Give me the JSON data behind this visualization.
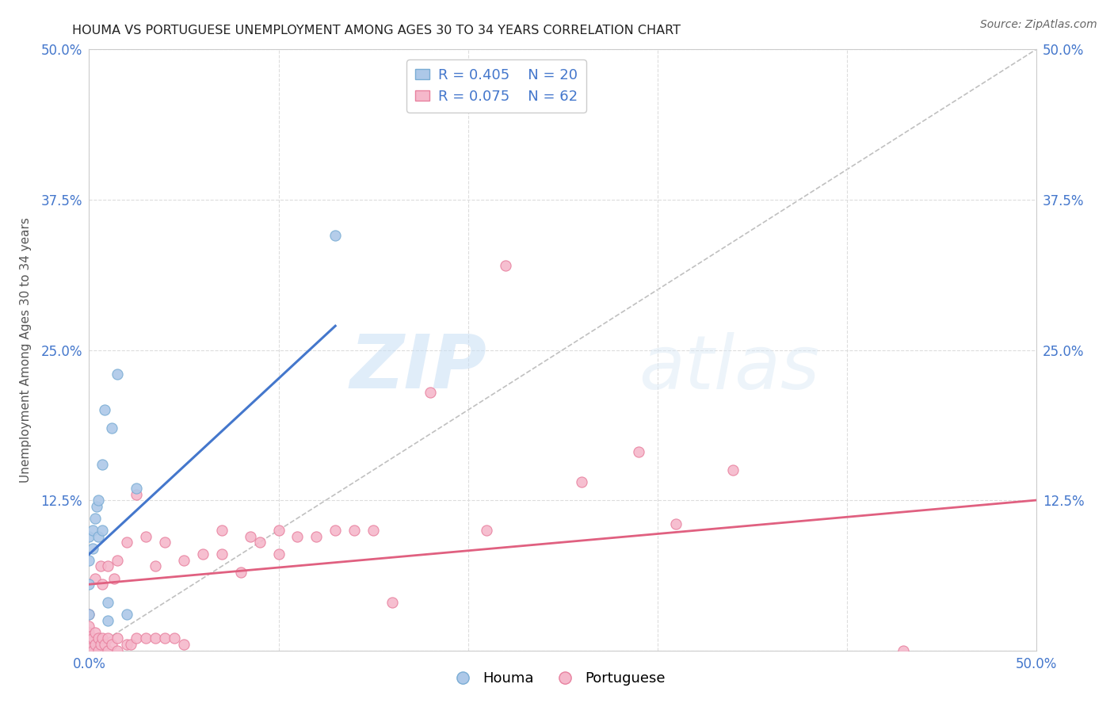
{
  "title": "HOUMA VS PORTUGUESE UNEMPLOYMENT AMONG AGES 30 TO 34 YEARS CORRELATION CHART",
  "source": "Source: ZipAtlas.com",
  "ylabel": "Unemployment Among Ages 30 to 34 years",
  "xlim": [
    0.0,
    0.5
  ],
  "ylim": [
    0.0,
    0.5
  ],
  "houma_color": "#adc8e8",
  "houma_edge_color": "#7aadd4",
  "portuguese_color": "#f5b8cb",
  "portuguese_edge_color": "#e8819f",
  "houma_line_color": "#4477cc",
  "portuguese_line_color": "#e06080",
  "diag_line_color": "#c0c0c0",
  "R_houma": 0.405,
  "N_houma": 20,
  "R_portuguese": 0.075,
  "N_portuguese": 62,
  "background_color": "#ffffff",
  "grid_color": "#dddddd",
  "watermark_zip": "ZIP",
  "watermark_atlas": "atlas",
  "houma_x": [
    0.0,
    0.0,
    0.0,
    0.0,
    0.002,
    0.002,
    0.003,
    0.004,
    0.005,
    0.005,
    0.007,
    0.007,
    0.008,
    0.01,
    0.01,
    0.012,
    0.015,
    0.02,
    0.025,
    0.13
  ],
  "houma_y": [
    0.03,
    0.055,
    0.075,
    0.095,
    0.085,
    0.1,
    0.11,
    0.12,
    0.095,
    0.125,
    0.1,
    0.155,
    0.2,
    0.025,
    0.04,
    0.185,
    0.23,
    0.03,
    0.135,
    0.345
  ],
  "houma_line_x": [
    0.0,
    0.13
  ],
  "houma_line_y": [
    0.08,
    0.27
  ],
  "portuguese_x": [
    0.0,
    0.0,
    0.0,
    0.0,
    0.0,
    0.0,
    0.002,
    0.002,
    0.003,
    0.003,
    0.003,
    0.005,
    0.005,
    0.006,
    0.006,
    0.007,
    0.007,
    0.008,
    0.01,
    0.01,
    0.01,
    0.012,
    0.013,
    0.015,
    0.015,
    0.015,
    0.02,
    0.02,
    0.022,
    0.025,
    0.025,
    0.03,
    0.03,
    0.035,
    0.035,
    0.04,
    0.04,
    0.045,
    0.05,
    0.05,
    0.06,
    0.07,
    0.07,
    0.08,
    0.085,
    0.09,
    0.1,
    0.1,
    0.11,
    0.12,
    0.13,
    0.14,
    0.15,
    0.16,
    0.18,
    0.21,
    0.22,
    0.26,
    0.29,
    0.31,
    0.34,
    0.43
  ],
  "portuguese_y": [
    0.0,
    0.005,
    0.01,
    0.015,
    0.02,
    0.03,
    0.0,
    0.01,
    0.005,
    0.015,
    0.06,
    0.0,
    0.01,
    0.005,
    0.07,
    0.01,
    0.055,
    0.005,
    0.0,
    0.01,
    0.07,
    0.005,
    0.06,
    0.0,
    0.01,
    0.075,
    0.005,
    0.09,
    0.005,
    0.01,
    0.13,
    0.01,
    0.095,
    0.01,
    0.07,
    0.01,
    0.09,
    0.01,
    0.005,
    0.075,
    0.08,
    0.08,
    0.1,
    0.065,
    0.095,
    0.09,
    0.08,
    0.1,
    0.095,
    0.095,
    0.1,
    0.1,
    0.1,
    0.04,
    0.215,
    0.1,
    0.32,
    0.14,
    0.165,
    0.105,
    0.15,
    0.0
  ],
  "portuguese_line_x": [
    0.0,
    0.5
  ],
  "portuguese_line_y": [
    0.055,
    0.125
  ]
}
